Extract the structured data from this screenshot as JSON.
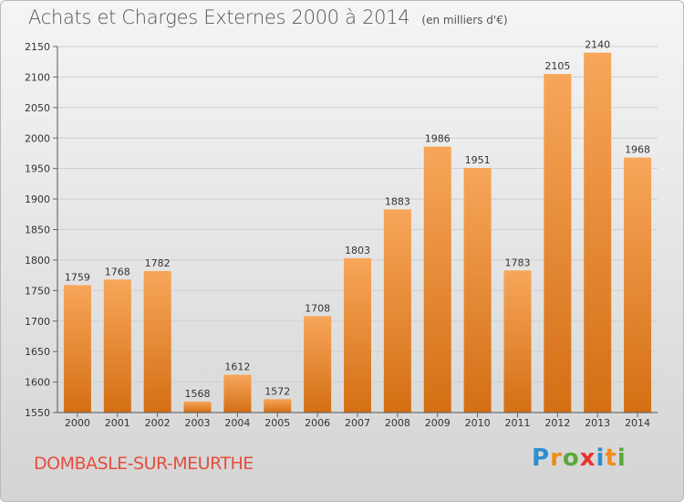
{
  "title": "Achats et Charges Externes 2000 à 2014",
  "unit": "(en milliers d'€)",
  "commune": "DOMBASLE-SUR-MEURTHE",
  "brand": {
    "letters": [
      "P",
      "r",
      "o",
      "x",
      "i",
      "t",
      "i"
    ],
    "colors": [
      "#2f8fcf",
      "#f08c1a",
      "#5aa83a",
      "#e5352c",
      "#2f8fcf",
      "#f08c1a",
      "#5aa83a"
    ]
  },
  "colors": {
    "bar_light": "#f7a65a",
    "bar_dark": "#d46f14",
    "title": "#555555",
    "commune": "#e34e3e"
  },
  "chart_data": {
    "type": "bar",
    "categories": [
      "2000",
      "2001",
      "2002",
      "2003",
      "2004",
      "2005",
      "2006",
      "2007",
      "2008",
      "2009",
      "2010",
      "2011",
      "2012",
      "2013",
      "2014"
    ],
    "values": [
      1759,
      1768,
      1782,
      1568,
      1612,
      1572,
      1708,
      1803,
      1883,
      1986,
      1951,
      1783,
      2105,
      2140,
      1968
    ],
    "ylim": [
      1550,
      2150
    ],
    "yticks": [
      1550,
      1600,
      1650,
      1700,
      1750,
      1800,
      1850,
      1900,
      1950,
      2000,
      2050,
      2100,
      2150
    ],
    "data_labels": true,
    "grid": true
  }
}
